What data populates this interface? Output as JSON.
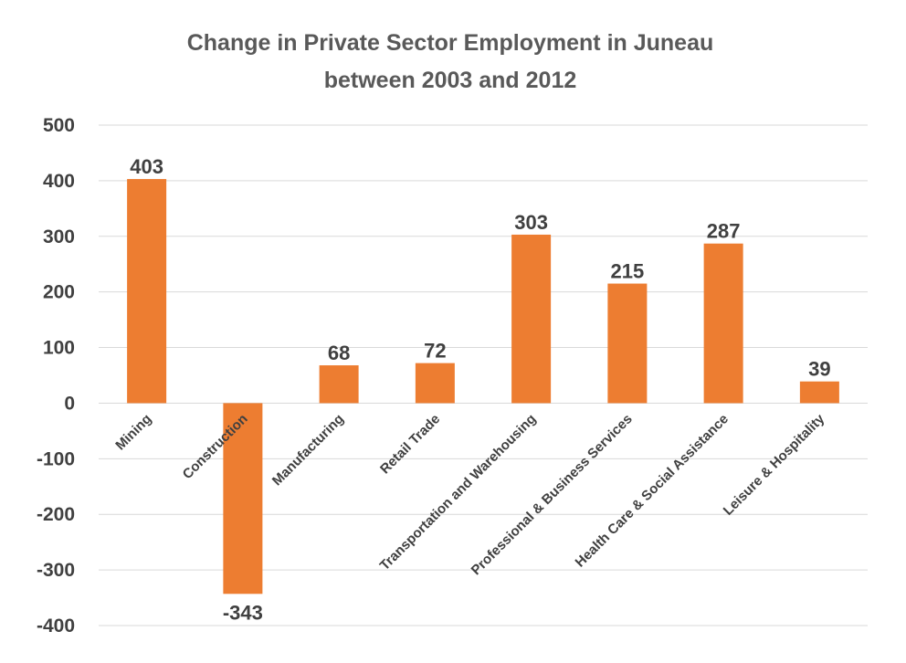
{
  "chart_data": {
    "type": "bar",
    "title": [
      "Change in Private Sector Employment in Juneau",
      "between 2003 and 2012"
    ],
    "categories": [
      "Mining",
      "Construction",
      "Manufacturing",
      "Retail Trade",
      "Transportation and Warehousing",
      "Professional & Business Services",
      "Health Care & Social Assistance",
      "Leisure & Hospitality"
    ],
    "values": [
      403,
      -343,
      68,
      72,
      303,
      215,
      287,
      39
    ],
    "data_labels": [
      "403",
      "-343",
      "68",
      "72",
      "303",
      "215",
      "287",
      "39"
    ],
    "ylim": [
      -400,
      500
    ],
    "yticks": [
      500,
      400,
      300,
      200,
      100,
      0,
      -100,
      -200,
      -300,
      -400
    ],
    "ytick_labels": [
      "500",
      "400",
      "300",
      "200",
      "100",
      "0",
      "-100",
      "-200",
      "-300",
      "-400"
    ],
    "grid": true,
    "legend": "none",
    "bar_color": "#ED7D31",
    "xlabel": "",
    "ylabel": ""
  }
}
